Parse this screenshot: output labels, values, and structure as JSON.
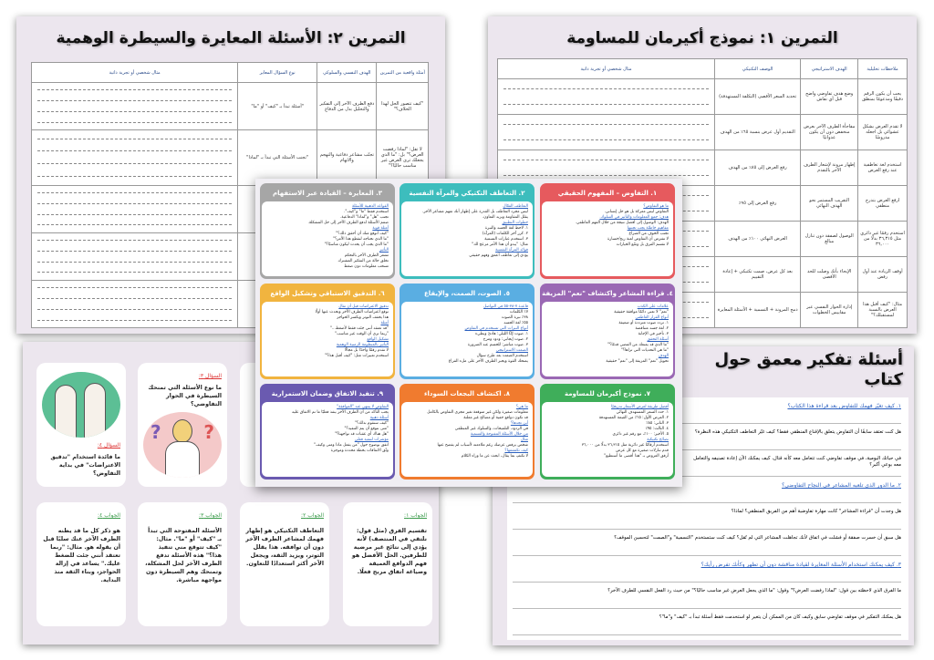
{
  "sheet_ex2": {
    "title": "التمرين ٢: الأسئلة المعايرة والسيطرة الوهمية",
    "headers": [
      "أمثلة واقعية من التمرين",
      "الهدف النفسي والسلوكي",
      "نوع السؤال المعاير",
      "مثال شخصي أو تجربة ذاتية"
    ],
    "rows": [
      [
        "\"كيف تتصور الحل لهذا الخلاف؟\"",
        "دفع الطرف الآخر إلى التفكير والتحليل بدل من الدفاع",
        "\"أسئلة تبدأ بـ \"كيف\" أو \"ما\""
      ],
      [
        "لا تقل: \"لماذا رفضت العرض؟\" بل: \"ما الذي يجعلك ترى العرض غير مناسب حاليًا؟\"",
        "تجنّب مشاعر دفاعية والتهجم والاتهام",
        "\"تجنب الأسئلة التي تبدأ بـ \"لماذا\""
      ]
    ]
  },
  "sheet_ex1": {
    "title": "التمرين ١: نموذج أكيرمان للمساومة",
    "headers": [
      "ملاحظات تحليلية",
      "الهدف الاستراتيجي",
      "الوصف التكتيكي",
      "مثال شخصي أو تجربة ذاتية"
    ],
    "rows": [
      [
        "يجب أن يكون الرقم دقيقًا ومدعومًا بمنطق",
        "وضع هدف تفاوضي واضح قبل أي نقاش",
        "تحديد السعر الأقصى (التكلفة المستهدفة)"
      ],
      [
        "لا تقدم العرض بشكل عشوائي بل اجعله مدروسًا",
        "مفاجأة الطرف الآخر بعرض منخفض دون أن يكون عدوانيًا",
        "التقديم أول عرض بنسبة ٦٥٪ من الهدف"
      ],
      [
        "استخدم لغة تعاطفية عند رفع العرض",
        "إظهار مرونة لإشعار الطرف الآخر بالتقدم",
        "رفع العرض إلى ٨٥٪ من الهدف"
      ],
      [
        "ارفع العرض بتدرج منطقي",
        "التقريب المستمر نحو الهدف النهائي",
        "رفع العرض إلى ٩٥٪"
      ],
      [
        "استخدم رقمًا غير دائري مثل ٣٦,٣١٥ بدلًا من ٣٦,٠٠٠",
        "الوصول لصفقة دون تنازل مبالغ",
        "العرض النهائي ١٠٠٪ من الهدف"
      ],
      [
        "أوقف الزيادة عند أول رفض",
        "الإيحاء بأنك وصلت للحد الأقصى",
        "بعد كل عرض، صمت تكتيكي + إعادة التقييم"
      ],
      [
        "مثال: \"كيف أقبل هذا العرض بالنسبة لمستقبلك؟\"",
        "إدارة الحوار النفسي عبر مقاييس الخطوات",
        "دمج المرونة + التسمية + الأسئلة المعايرة"
      ]
    ]
  },
  "summary_cards": [
    {
      "title": "١. التفاوض – المفهوم الحقيقي",
      "color": "#e65a5e",
      "items": [
        "ما هو التفاوض؟",
        "التفاوض ليس معركة بل هو حل إنساني.",
        "هدف: جمع المعلومات والتأثير في السلوك.",
        "الهدف: الوصول إلى أفضل نتيجة من خلال الفهم العاطفي.",
        "مفاهيم خاطئة يجب تجنبها",
        "تجنب الخوف من الصراع",
        "لا تفترض أن التفاوض لعبة ربح/خسارة",
        "لا تقسم الفرق بل وسّع الخيارات"
      ]
    },
    {
      "title": "٢. التعاطف التكتيكي والمرآة النفسية",
      "color": "#3dbdbd",
      "items": [
        "التعاطف الفعّال",
        "ليس مجرد التعاطف بل القدرة على إظهار أنك تفهم مشاعر الآخر.",
        "يقلل المقاومة ويزيد التعاون.",
        "خطوات التطبيق",
        "١. لاحظ لغة الجسد والنبرة",
        "٢. كرر آخر الكلمات (المرآة)",
        "٣. استخدم عبارات التسمية",
        "مثال: \"يبدو أن هذا الأمر مزعج لك\"",
        "فوائد المرآة النفسية",
        "يؤدي إلى تعاطف أعمق وفهم حقيقي"
      ]
    },
    {
      "title": "٣. المعايرة – القيادة عبر الاستفهام",
      "color": "#a6a6a6",
      "items": [
        "القواعد الذهبية للأسئلة",
        "استخدم فقط \"ما\" و\"كيف\".",
        "تجنب \"هل\" و\"لماذا\" الدفاعية.",
        "صمم الأسئلة لدفع الطرف الآخر إلى حل المشكلة.",
        "أمثلة قوية",
        "\"كيف أتوقع منك أن أحقق ذلك؟\"",
        "\"ما الذي تحتاجه لنقطع هذا الأمر؟\"",
        "\"ما الذي يجب أن يحدث ليكون مناسبًا؟\"",
        "التأثير",
        "تشعر الطرف الآخر بالتحكم",
        "تخلق حالة من التفكير المشترك",
        "تسحب معلومات دون ضغط"
      ]
    },
    {
      "title": "٤. قراءة المشاعر واكتشاف \"نعم\" المزيفة",
      "color": "#9a68b4",
      "items": [
        "علامات على الكذب",
        "\"نعم\" لا تعني دائمًا موافقة حقيقية",
        "أنواع القرار العاطفي",
        "١. تردد صوت مترددة أو ضعيفة",
        "٢. لغة جسد متناقضة",
        "٣. تأخير في الإجابة",
        "أسئلة التحقق",
        "\"ما الذي قد يمنعك من المضي قدمًا؟\"",
        "\"ما هي التحديات التي تراها؟\"",
        "الهدف",
        "تحويل \"نعم\" المزيفة إلى \"نعم\" حقيقية"
      ]
    },
    {
      "title": "٥. الصوت، الصمت، والإيقاع",
      "color": "#5aaee2",
      "items": [
        "قاعدة ٧-٣٨-٥٥ في التواصل",
        "٧٪ الكلمات",
        "٣٨٪ نبرة الصوت",
        "٥٥٪ لغة الجسد",
        "أنواع النبرات التي تستخدم في التفاوض",
        "١. صوت DJ الليلي: هادئ وبطيء",
        "٢. صوت إيجابي: ودود ومرح",
        "٣. صوت مباشر: للحسم عند الضرورة",
        "الصمت الاستراتيجي",
        "استخدم الصمت بعد طرح سؤال",
        "يمنحك القوة ويجبر الطرف الآخر على ملء الفراغ"
      ]
    },
    {
      "title": "٦. التدقيق الاستباقي وتشكيل الواقع",
      "color": "#f1b43f",
      "items": [
        "تدقيق الاعتراضات قبل أن تقال",
        "توقع اعتراضات الطرف الآخر وتحدث عنها أولًا",
        "هذا يخفف التوتر ويكسر الحواجز",
        "أمثلة",
        "\"قد تعتقد أنني جئت فقط لأضغط...\"",
        "\"ربما ترى أن الوقت غير مناسب\"",
        "تشكيل الواقع",
        "التأثير بالمنظومة الزمنية الوهمية",
        "لا تقدم رقمًا واحدًا بل مجالًا",
        "استخدم تعبيرات مثل: \"كيف أقبل هذا؟\""
      ]
    },
    {
      "title": "٧. نموذج أكيرمان للمساومة",
      "color": "#3fae5a",
      "items": [
        "أفضل طريقة لعرض الأسعار تدريجيًا",
        "١. حدد السعر المستهدف النهائي",
        "٢. العرض الأول: ٦٥٪ من القيمة المستهدفة",
        "٣. الثاني: ٨٥٪",
        "٤. الثالث: ٩٥٪",
        "٥. الأخير: ١٠٠٪، مع رقم غير دائري",
        "نصائح تكتيكية",
        "استخدم أرقامًا غير دائرية مثل ٣٦,٣١٥ بدلًا من ٣٦,٠٠٠",
        "قدم تنازلات صغيرة مع كل عرض",
        "أرفق العروض بـ \"هذا أقصى ما أستطيع\""
      ]
    },
    {
      "title": "٨. اكتشاف البجعات السوداء",
      "color": "#f07b2f",
      "items": [
        "ما هي؟",
        "معلومات صغيرة ولكن غير متوقعة تغير مجرى التفاوض بالكامل",
        "قد تكون دوافع خفية أو مصالح غير معلنة",
        "أين تجدها؟",
        "في الردود، التلميحات، والسلوك غير المنطقي",
        "من خلال الأسئلة المفتوحة والتسمية",
        "مثال",
        "شخص يرفض عرضك رغم ملاءمته لأسباب لم يفصح عنها",
        "كيف تكتشفها؟",
        "لا تكتفِ بما يقال، ابحث عن ما وراء الكلام"
      ]
    },
    {
      "title": "٩. تنفيذ الاتفاق وضمان الاستمرارية",
      "color": "#6a5ab0",
      "items": [
        "التفاوض لا ينتهي عند \"الموافقة\"",
        "يجب التأكد من أن الطرف الآخر ينفذ فعليًا ما تم الاتفاق عليه",
        "أسئلة ذهبية",
        "\"كيف سنقوم بذلك؟\"",
        "\"متى نتوقع أن يتم التنفيذ؟\"",
        "\"هل هناك أي عقبات قد تواجهنا؟\"",
        "مؤشرات لتنفيذ فعلي",
        "اتفق بوضوح حول \"من يفعل ماذا ومتى وكيف\"",
        "وثّق الاتفاقات بخطة محددة وموجزة"
      ]
    }
  ],
  "qa_sheet": {
    "questions": [
      {
        "label": "السؤال ٤:",
        "text": "ما فائدة استخدام \"تدقيق الاعتراضات\" في بداية التفاوض؟"
      },
      {
        "label": "السؤال ٣:",
        "text": "ما نوع الأسئلة التي تمنحك السيطرة في الحوار التفاوضي؟"
      }
    ],
    "answers": [
      {
        "label": "الجواب ٤:",
        "text": "هو ذكر كل ما قد يظنه الطرف الآخر عنك سلبًا قبل أن يقوله هو. مثال: \"ربما تعتقد أنني جئت للضغط عليك.\" يساعد في إزالة الحواجز، وبناء الثقة منذ البداية."
      },
      {
        "label": "الجواب ٣:",
        "text": "الأسئلة المفتوحة التي تبدأ بـ \"كيف\" أو \"ما\". مثال: \"كيف تتوقع مني تنفيذ هذا؟\" هذه الأسئلة تدفع الطرف الآخر لحل المشكلة، وتمنحك وهم السيطرة دون مواجهة مباشرة."
      },
      {
        "label": "الجواب ٢:",
        "text": "التعاطف التكتيكي هو إظهار فهمك لمشاعر الطرف الآخر دون أن توافقه. هذا يقلل التوتر، ويزيد الثقة، ويجعل الآخر أكثر استعدادًا للتعاون."
      },
      {
        "label": "الجواب ١:",
        "text": "تقسيم الفرق (مثل قول: نلتقي في المنتصف) لأنه يؤدي إلى نتائج غير مرضية للطرفين. الحل الأفضل هو فهم الدوافع العميقة وصياغة اتفاق مربح فعلًا."
      }
    ]
  },
  "reflection_sheet": {
    "title": "أسئلة تفكير معمق حول كتاب",
    "items": [
      {
        "type": "heading",
        "text": "١. كيف تغيّر فهمك للتفاوض بعد قراءة هذا الكتاب؟"
      },
      {
        "type": "q",
        "text": "هل كنت تعتقد سابقًا أن التفاوض يتعلق بالإقناع المنطقي فقط؟ كيف غيّر التعاطف التكتيكي هذه النظرة؟"
      },
      {
        "type": "q",
        "text": "في حياتك اليومية، في موقف تفاوضي كنت تتعامل معه كأنه قتال، كيف يمكنك الآن إعادة تصنيفه والتعامل معه بوعي أكبر؟"
      },
      {
        "type": "heading",
        "text": "٢. ما الدور الذي تلعبه المشاعر في النجاح التفاوضي؟"
      },
      {
        "type": "q",
        "text": "هل وجدت أن \"قراءة المشاعر\" كانت مهارة تفاوضية أهم من الفريق المنطقي؟ لماذا؟"
      },
      {
        "type": "q",
        "text": "هل سبق أن خسرت صفقة أو فشلت في اتفاق لأنك تجاهلت المشاعر التي لم تُقل؟ كيف كنت ستستخدم \"التسمية\" و\"الصمت\" لتحسين الموقف؟"
      },
      {
        "type": "heading",
        "text": "٣. كيف يمكنك استخدام الأسئلة المعايرة لقيادة مناقشة دون أن تظهر وكأنك تفرض رأيك؟"
      },
      {
        "type": "q",
        "text": "ما الفرق الذي لاحظته بين قول: \"لماذا رفضت العرض؟\" وقول: \"ما الذي يجعل العرض غير مناسب حاليًا؟\" من حيث رد الفعل النفسي للطرف الآخر؟"
      },
      {
        "type": "q",
        "text": "هل يمكنك التفكير في موقف تفاوضي سابق وكيف كان من الممكن أن يتغير لو استخدمت فقط أسئلة تبدأ بـ \"كيف\" و\"ما\"؟"
      }
    ]
  }
}
